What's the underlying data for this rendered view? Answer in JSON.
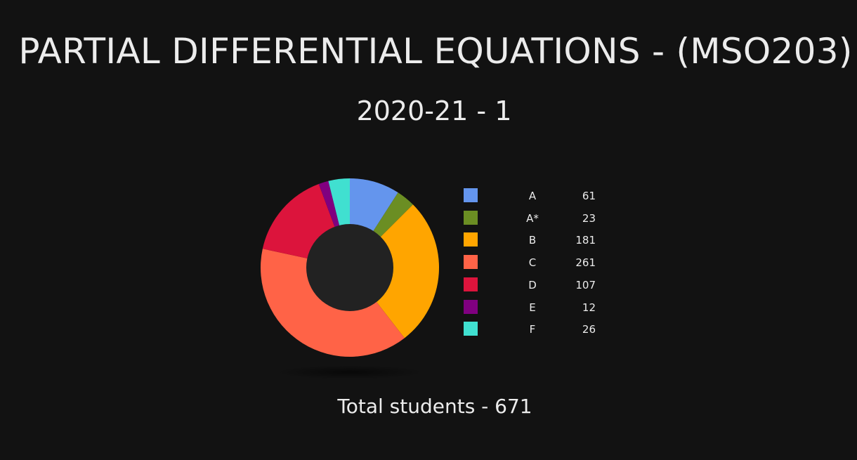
{
  "header": {
    "title": "PARTIAL DIFFERENTIAL EQUATIONS - (MSO203)",
    "semester": "2020-21 - 1"
  },
  "footer": {
    "total_text": "Total students - 671"
  },
  "chart_data": {
    "type": "pie",
    "variant": "donut",
    "title": "",
    "categories": [
      "A",
      "A*",
      "B",
      "C",
      "D",
      "E",
      "F"
    ],
    "values": [
      61,
      23,
      181,
      261,
      107,
      12,
      26
    ],
    "colors": [
      "#6495ED",
      "#6B8E23",
      "#FFA500",
      "#FF6347",
      "#DC143C",
      "#800080",
      "#40E0D0"
    ],
    "hole_color": "#222222",
    "legend_position": "right"
  }
}
